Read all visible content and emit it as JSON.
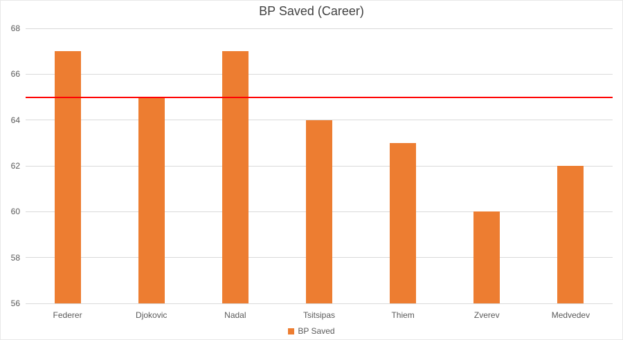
{
  "chart_data": {
    "type": "bar",
    "title": "BP Saved (Career)",
    "categories": [
      "Federer",
      "Djokovic",
      "Nadal",
      "Tsitsipas",
      "Thiem",
      "Zverev",
      "Medvedev"
    ],
    "series": [
      {
        "name": "BP Saved",
        "values": [
          67,
          65,
          67,
          64,
          63,
          60,
          62
        ]
      }
    ],
    "xlabel": "",
    "ylabel": "",
    "ylim": [
      56,
      68
    ],
    "yticks": [
      56,
      58,
      60,
      62,
      64,
      66,
      68
    ],
    "grid": true,
    "legend_position": "bottom",
    "bar_color": "#ed7d31",
    "gridline_color": "#d9d9d9",
    "text_color": "#595959",
    "reference_line": {
      "value": 65,
      "color": "#ff0000"
    }
  },
  "legend": {
    "label": "BP Saved"
  }
}
